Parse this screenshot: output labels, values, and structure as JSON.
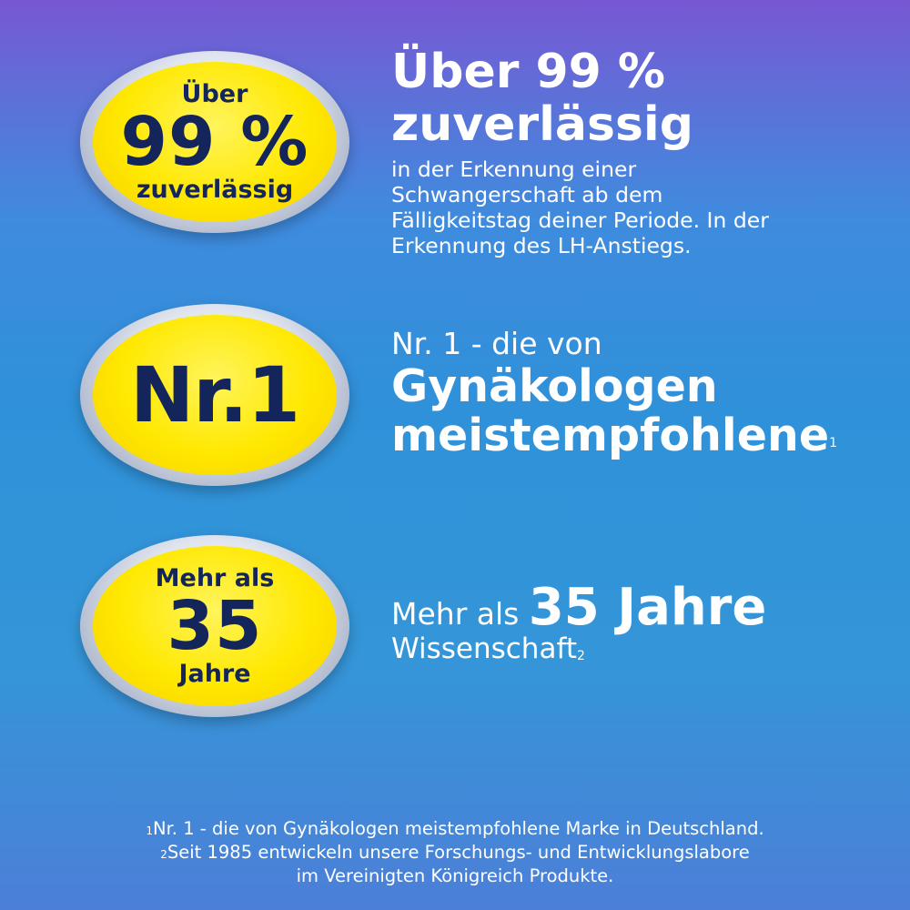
{
  "badges": {
    "b1": {
      "top": "Über",
      "big": "99 %",
      "bottom": "zuverlässig"
    },
    "b2": {
      "big": "Nr.1"
    },
    "b3": {
      "top": "Mehr als",
      "big": "35",
      "bottom": "Jahre"
    }
  },
  "claims": {
    "c1": {
      "heading_line1": "Über 99 %",
      "heading_line2": "zuverlässig",
      "body_lines": [
        "in der Erkennung einer",
        "Schwangerschaft ab dem",
        "Fälligkeitstag deiner Periode. In der",
        "Erkennung des LH-Anstiegs."
      ]
    },
    "c2": {
      "lead": "Nr. 1 - die von",
      "heading_line1": "Gynäkologen",
      "heading_line2": "meistempfohlene",
      "sup": "1"
    },
    "c3": {
      "lead": "Mehr als",
      "big": "35 Jahre",
      "sub": "Wissenschaft",
      "sup": "2"
    }
  },
  "footnotes": {
    "f1_sup": "1",
    "f1": "Nr. 1 - die von Gynäkologen meistempfohlene Marke in Deutschland.",
    "f2_sup": "2",
    "f2": "Seit 1985 entwickeln unsere Forschungs- und Entwicklungslabore",
    "f3": "im Vereinigten Königreich Produkte."
  }
}
